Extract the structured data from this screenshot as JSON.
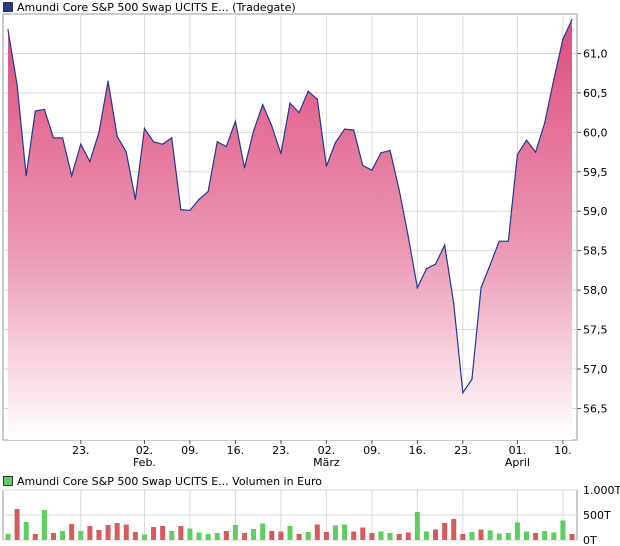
{
  "price_legend": {
    "label": "Amundi Core S&P 500 Swap UCITS E... (Tradegate)",
    "color": "#1f3a8f"
  },
  "volume_legend": {
    "label": "Amundi Core S&P 500 Swap UCITS E... Volumen in Euro",
    "color": "#5dcf5d"
  },
  "chart_data": [
    {
      "type": "area",
      "title": "",
      "xlabel": "",
      "ylabel": "",
      "ylim": [
        56.1,
        61.5
      ],
      "y_ticks": [
        "61,0",
        "60,5",
        "60,0",
        "59,5",
        "59,0",
        "58,5",
        "58,0",
        "57,5",
        "57,0",
        "56,5"
      ],
      "y_tick_values": [
        61.0,
        60.5,
        60.0,
        59.5,
        59.0,
        58.5,
        58.0,
        57.5,
        57.0,
        56.5
      ],
      "x_ticks": [
        {
          "label": "23.",
          "sub": "",
          "index": 8
        },
        {
          "label": "02.",
          "sub": "Feb.",
          "index": 15
        },
        {
          "label": "09.",
          "sub": "",
          "index": 20
        },
        {
          "label": "16.",
          "sub": "",
          "index": 25
        },
        {
          "label": "23.",
          "sub": "",
          "index": 30
        },
        {
          "label": "02.",
          "sub": "März",
          "index": 35
        },
        {
          "label": "09.",
          "sub": "",
          "index": 40
        },
        {
          "label": "16.",
          "sub": "",
          "index": 45
        },
        {
          "label": "23.",
          "sub": "",
          "index": 50
        },
        {
          "label": "01.",
          "sub": "April",
          "index": 56
        },
        {
          "label": "10.",
          "sub": "",
          "index": 61
        }
      ],
      "grid": true,
      "series": [
        {
          "values": [
            61.3,
            60.6,
            59.45,
            60.27,
            60.29,
            59.93,
            59.93,
            59.45,
            59.85,
            59.63,
            60.0,
            60.65,
            59.95,
            59.75,
            59.15,
            60.05,
            59.88,
            59.85,
            59.93,
            59.02,
            59.01,
            59.15,
            59.25,
            59.88,
            59.82,
            60.14,
            59.55,
            60.02,
            60.35,
            60.08,
            59.73,
            60.37,
            60.25,
            60.52,
            60.42,
            59.57,
            59.87,
            60.04,
            60.03,
            59.58,
            59.52,
            59.74,
            59.77,
            59.27,
            58.68,
            58.03,
            58.27,
            58.33,
            58.57,
            57.83,
            56.7,
            56.87,
            58.03,
            58.32,
            58.62,
            58.62,
            59.72,
            59.9,
            59.75,
            60.12,
            60.67,
            61.18,
            61.43
          ]
        }
      ]
    },
    {
      "type": "bar",
      "title": "",
      "ylim": [
        0,
        1000
      ],
      "y_ticks": [
        "1.000T",
        "500T",
        "0T"
      ],
      "y_tick_values": [
        1000,
        500,
        0
      ],
      "grid": true,
      "colors": {
        "up": "#5dcf5d",
        "down": "#d85a5a"
      },
      "series": [
        {
          "name": "Volumen in Euro",
          "values": [
            120,
            620,
            360,
            120,
            600,
            140,
            180,
            320,
            180,
            280,
            200,
            300,
            340,
            310,
            160,
            110,
            260,
            280,
            180,
            280,
            230,
            150,
            120,
            140,
            180,
            300,
            140,
            220,
            330,
            180,
            170,
            280,
            120,
            160,
            310,
            160,
            290,
            310,
            170,
            250,
            140,
            170,
            140,
            120,
            150,
            560,
            170,
            210,
            340,
            420,
            120,
            160,
            210,
            190,
            130,
            140,
            350,
            170,
            140,
            180,
            150,
            390,
            120
          ],
          "direction": [
            "up",
            "down",
            "up",
            "down",
            "up",
            "down",
            "up",
            "down",
            "up",
            "down",
            "down",
            "down",
            "down",
            "down",
            "down",
            "up",
            "down",
            "down",
            "up",
            "down",
            "up",
            "up",
            "up",
            "up",
            "down",
            "up",
            "down",
            "up",
            "up",
            "down",
            "down",
            "up",
            "down",
            "up",
            "down",
            "down",
            "up",
            "up",
            "down",
            "down",
            "down",
            "up",
            "up",
            "down",
            "down",
            "up",
            "up",
            "down",
            "down",
            "down",
            "down",
            "up",
            "down",
            "up",
            "up",
            "up",
            "up",
            "up",
            "down",
            "up",
            "up",
            "up",
            "down"
          ]
        }
      ]
    }
  ]
}
